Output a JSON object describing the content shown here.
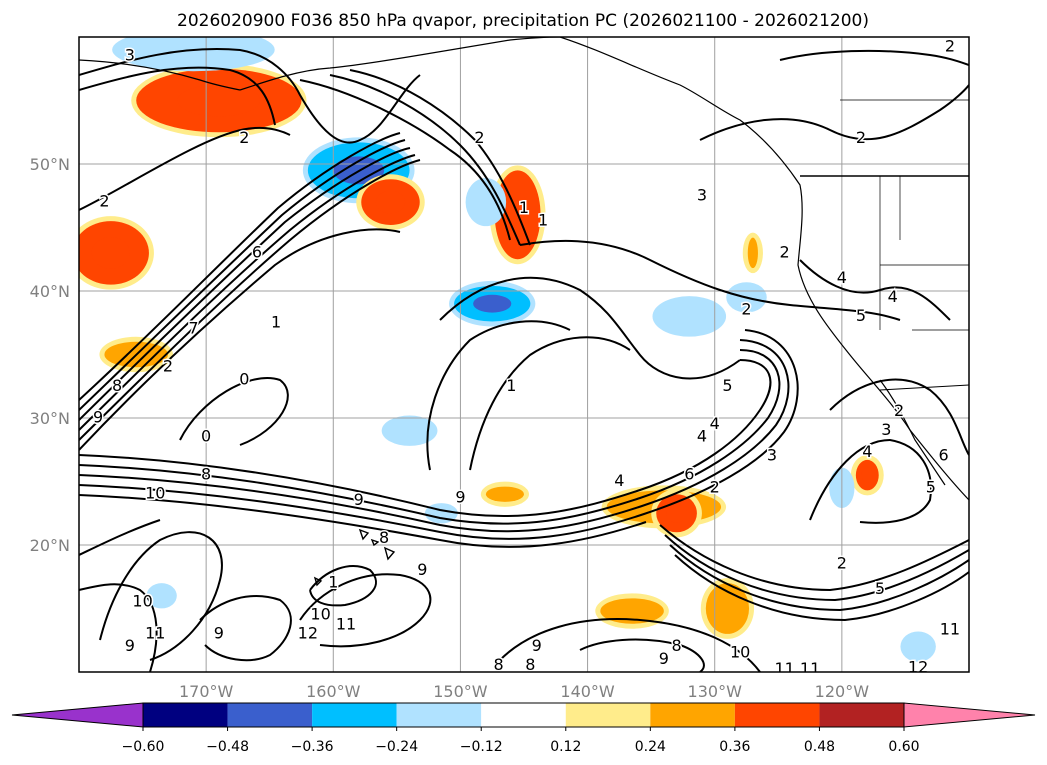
{
  "title": "2026020900 F036 850 hPa qvapor, precipitation PC (2026021100 - 2026021200)",
  "chart_data": {
    "type": "heatmap",
    "title": "2026020900 F036 850 hPa qvapor, precipitation PC (2026021100 - 2026021200)",
    "variable_fill": "precipitation PC",
    "variable_contour": "850 hPa qvapor",
    "lon_range": [
      -180,
      -110
    ],
    "lat_range": [
      10,
      60
    ],
    "lon_ticks": [
      {
        "value": -170,
        "label": "170°W"
      },
      {
        "value": -160,
        "label": "160°W"
      },
      {
        "value": -150,
        "label": "150°W"
      },
      {
        "value": -140,
        "label": "140°W"
      },
      {
        "value": -130,
        "label": "130°W"
      },
      {
        "value": -120,
        "label": "120°W"
      }
    ],
    "lat_ticks": [
      {
        "value": 20,
        "label": "20°N"
      },
      {
        "value": 30,
        "label": "30°N"
      },
      {
        "value": 40,
        "label": "40°N"
      },
      {
        "value": 50,
        "label": "50°N"
      }
    ],
    "colorbar": {
      "levels": [
        -0.6,
        -0.48,
        -0.36,
        -0.24,
        -0.12,
        0.12,
        0.24,
        0.36,
        0.48,
        0.6
      ],
      "tick_labels": [
        "−0.60",
        "−0.48",
        "−0.36",
        "−0.24",
        "−0.12",
        "0.12",
        "0.24",
        "0.36",
        "0.48",
        "0.60"
      ],
      "colors": [
        "#9932cc",
        "#000080",
        "#3a5fcd",
        "#00bfff",
        "#b0e2ff",
        "#ffffff",
        "#ffec8b",
        "#ffa500",
        "#ff4500",
        "#b22222",
        "#ff82ab"
      ],
      "extend": "both"
    },
    "contour_labels": [
      {
        "text": "3",
        "lon": -176,
        "lat": 58.5
      },
      {
        "text": "2",
        "lon": -167,
        "lat": 52
      },
      {
        "text": "2",
        "lon": -178,
        "lat": 47
      },
      {
        "text": "6",
        "lon": -166,
        "lat": 43
      },
      {
        "text": "7",
        "lon": -171,
        "lat": 37
      },
      {
        "text": "1",
        "lon": -164.5,
        "lat": 37.5
      },
      {
        "text": "2",
        "lon": -173,
        "lat": 34
      },
      {
        "text": "8",
        "lon": -177,
        "lat": 32.5
      },
      {
        "text": "9",
        "lon": -178.5,
        "lat": 30
      },
      {
        "text": "0",
        "lon": -167,
        "lat": 33
      },
      {
        "text": "0",
        "lon": -170,
        "lat": 28.5
      },
      {
        "text": "8",
        "lon": -170,
        "lat": 25.5
      },
      {
        "text": "10",
        "lon": -174,
        "lat": 24
      },
      {
        "text": "9",
        "lon": -158,
        "lat": 23.5
      },
      {
        "text": "9",
        "lon": -150,
        "lat": 23.7
      },
      {
        "text": "8",
        "lon": -156,
        "lat": 20.5
      },
      {
        "text": "9",
        "lon": -153,
        "lat": 18
      },
      {
        "text": "1",
        "lon": -160,
        "lat": 17
      },
      {
        "text": "10",
        "lon": -161,
        "lat": 14.5
      },
      {
        "text": "11",
        "lon": -159,
        "lat": 13.7
      },
      {
        "text": "12",
        "lon": -162,
        "lat": 13
      },
      {
        "text": "9",
        "lon": -169,
        "lat": 13
      },
      {
        "text": "9",
        "lon": -176,
        "lat": 12
      },
      {
        "text": "11",
        "lon": -174,
        "lat": 13
      },
      {
        "text": "10",
        "lon": -175,
        "lat": 15.5
      },
      {
        "text": "2",
        "lon": -148.5,
        "lat": 52
      },
      {
        "text": "1",
        "lon": -145,
        "lat": 46.5
      },
      {
        "text": "1",
        "lon": -143.5,
        "lat": 45.5
      },
      {
        "text": "1",
        "lon": -146,
        "lat": 32.5
      },
      {
        "text": "4",
        "lon": -137.5,
        "lat": 25
      },
      {
        "text": "9",
        "lon": -144,
        "lat": 12
      },
      {
        "text": "8",
        "lon": -147,
        "lat": 10.5
      },
      {
        "text": "8",
        "lon": -144.5,
        "lat": 10.5
      },
      {
        "text": "9",
        "lon": -134,
        "lat": 11
      },
      {
        "text": "8",
        "lon": -133,
        "lat": 12
      },
      {
        "text": "10",
        "lon": -128,
        "lat": 11.5
      },
      {
        "text": "11",
        "lon": -124.5,
        "lat": 10.2
      },
      {
        "text": "11",
        "lon": -122.5,
        "lat": 10.2
      },
      {
        "text": "12",
        "lon": -114,
        "lat": 10.3
      },
      {
        "text": "11",
        "lon": -111.5,
        "lat": 13.3
      },
      {
        "text": "5",
        "lon": -129,
        "lat": 32.5
      },
      {
        "text": "4",
        "lon": -130,
        "lat": 29.5
      },
      {
        "text": "4",
        "lon": -131,
        "lat": 28.5
      },
      {
        "text": "6",
        "lon": -132,
        "lat": 25.5
      },
      {
        "text": "2",
        "lon": -130,
        "lat": 24.5
      },
      {
        "text": "2",
        "lon": -120,
        "lat": 18.5
      },
      {
        "text": "5",
        "lon": -117,
        "lat": 16.5
      },
      {
        "text": "4",
        "lon": -120,
        "lat": 41
      },
      {
        "text": "4",
        "lon": -116,
        "lat": 39.5
      },
      {
        "text": "5",
        "lon": -118.5,
        "lat": 38
      },
      {
        "text": "2",
        "lon": -115.5,
        "lat": 30.5
      },
      {
        "text": "3",
        "lon": -116.5,
        "lat": 29
      },
      {
        "text": "4",
        "lon": -118,
        "lat": 27.3
      },
      {
        "text": "5",
        "lon": -113,
        "lat": 24.5
      },
      {
        "text": "6",
        "lon": -112,
        "lat": 27
      },
      {
        "text": "2",
        "lon": -124.5,
        "lat": 43
      },
      {
        "text": "2",
        "lon": -127.5,
        "lat": 38.5
      },
      {
        "text": "3",
        "lon": -131,
        "lat": 47.5
      },
      {
        "text": "2",
        "lon": -118.5,
        "lat": 52
      },
      {
        "text": "2",
        "lon": -111.5,
        "lat": 59.2
      },
      {
        "text": "3",
        "lon": -125.5,
        "lat": 27
      }
    ],
    "precip_regions": [
      {
        "lon": -169,
        "lat": 55,
        "rx": 6.5,
        "ry": 2.5,
        "value": 0.36
      },
      {
        "lon": -177.5,
        "lat": 43,
        "rx": 3,
        "ry": 2.5,
        "value": 0.36
      },
      {
        "lon": -175.5,
        "lat": 35,
        "rx": 2.5,
        "ry": 1,
        "value": 0.24
      },
      {
        "lon": -171,
        "lat": 59,
        "rx": 6,
        "ry": 1.3,
        "value": -0.24
      },
      {
        "lon": -158,
        "lat": 49.5,
        "rx": 4,
        "ry": 2.2,
        "value": -0.36
      },
      {
        "lon": -155.5,
        "lat": 47,
        "rx": 2.3,
        "ry": 1.8,
        "value": 0.36
      },
      {
        "lon": -145.5,
        "lat": 46,
        "rx": 1.8,
        "ry": 3.5,
        "value": 0.36
      },
      {
        "lon": -148,
        "lat": 47,
        "rx": 1.2,
        "ry": 1.5,
        "value": -0.24
      },
      {
        "lon": -147.5,
        "lat": 39,
        "rx": 3,
        "ry": 1.4,
        "value": -0.36
      },
      {
        "lon": -132,
        "lat": 38,
        "rx": 2.5,
        "ry": 1.2,
        "value": -0.24
      },
      {
        "lon": -127.5,
        "lat": 39.5,
        "rx": 1.2,
        "ry": 0.8,
        "value": -0.24
      },
      {
        "lon": -154,
        "lat": 29,
        "rx": 1.8,
        "ry": 0.8,
        "value": -0.24
      },
      {
        "lon": -134,
        "lat": 23,
        "rx": 4.5,
        "ry": 1.3,
        "value": 0.24
      },
      {
        "lon": -133,
        "lat": 22.5,
        "rx": 1.6,
        "ry": 1.5,
        "value": 0.36
      },
      {
        "lon": -146.5,
        "lat": 24,
        "rx": 1.5,
        "ry": 0.6,
        "value": 0.24
      },
      {
        "lon": -136.5,
        "lat": 14.8,
        "rx": 2.5,
        "ry": 1,
        "value": 0.24
      },
      {
        "lon": -129,
        "lat": 15,
        "rx": 1.7,
        "ry": 2,
        "value": 0.24
      },
      {
        "lon": -118,
        "lat": 25.5,
        "rx": 0.9,
        "ry": 1.2,
        "value": 0.36
      },
      {
        "lon": -120,
        "lat": 24.5,
        "rx": 0.6,
        "ry": 1.2,
        "value": -0.24
      },
      {
        "lon": -173.5,
        "lat": 16,
        "rx": 0.8,
        "ry": 0.6,
        "value": -0.24
      },
      {
        "lon": -114,
        "lat": 12,
        "rx": 1,
        "ry": 0.8,
        "value": -0.24
      },
      {
        "lon": -127,
        "lat": 43,
        "rx": 0.4,
        "ry": 1.2,
        "value": 0.24
      },
      {
        "lon": -151.5,
        "lat": 22.5,
        "rx": 0.9,
        "ry": 0.4,
        "value": -0.24
      }
    ]
  }
}
